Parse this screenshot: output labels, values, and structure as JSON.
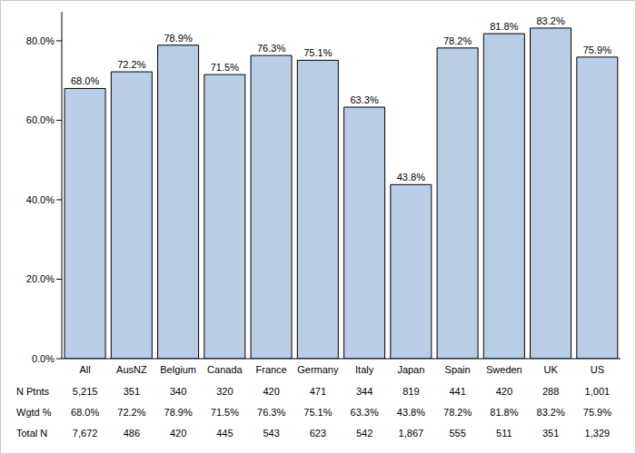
{
  "chart_data": {
    "type": "bar",
    "categories": [
      "All",
      "AusNZ",
      "Belgium",
      "Canada",
      "France",
      "Germany",
      "Italy",
      "Japan",
      "Spain",
      "Sweden",
      "UK",
      "US"
    ],
    "values": [
      68.0,
      72.2,
      78.9,
      71.5,
      76.3,
      75.1,
      63.3,
      43.8,
      78.2,
      81.8,
      83.2,
      75.9
    ],
    "value_labels": [
      "68.0%",
      "72.2%",
      "78.9%",
      "71.5%",
      "76.3%",
      "75.1%",
      "63.3%",
      "43.8%",
      "78.2%",
      "81.8%",
      "83.2%",
      "75.9%"
    ],
    "data_labels": true,
    "color": "#b9cde5",
    "grid": false,
    "ylim": [
      0,
      87.3
    ],
    "yticks": [
      {
        "value": 0,
        "label": "0.0%"
      },
      {
        "value": 20,
        "label": "20.0%"
      },
      {
        "value": 40,
        "label": "40.0%"
      },
      {
        "value": 60,
        "label": "60.0%"
      },
      {
        "value": 80,
        "label": "80.0%"
      }
    ],
    "table": {
      "rows": [
        {
          "label": "N Ptnts",
          "values": [
            "5,215",
            "351",
            "340",
            "320",
            "420",
            "471",
            "344",
            "819",
            "441",
            "420",
            "288",
            "1,001"
          ]
        },
        {
          "label": "Wgtd %",
          "values": [
            "68.0%",
            "72.2%",
            "78.9%",
            "71.5%",
            "76.3%",
            "75.1%",
            "63.3%",
            "43.8%",
            "78.2%",
            "81.8%",
            "83.2%",
            "75.9%"
          ]
        },
        {
          "label": "Total N",
          "values": [
            "7,672",
            "486",
            "420",
            "445",
            "543",
            "623",
            "542",
            "1,867",
            "555",
            "511",
            "351",
            "1,329"
          ]
        }
      ]
    }
  }
}
